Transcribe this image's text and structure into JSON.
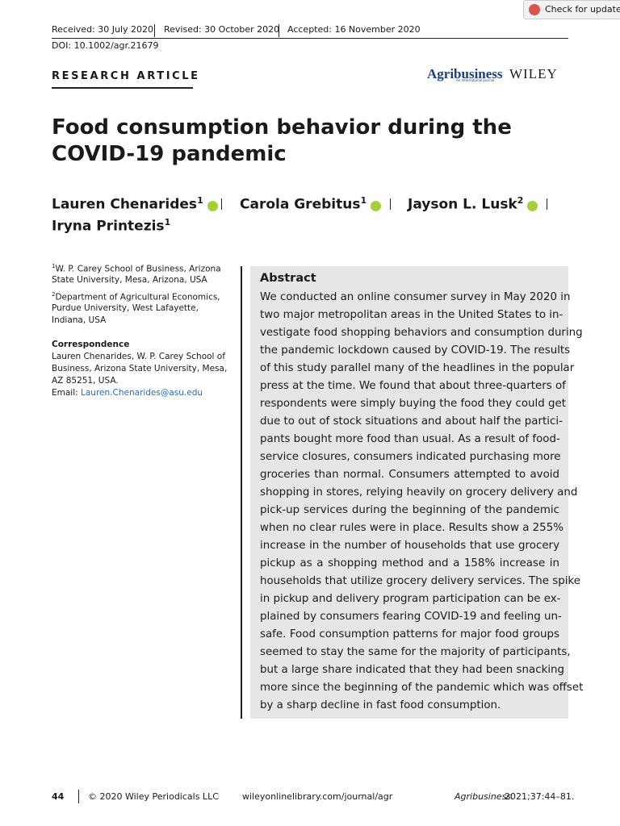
{
  "header": {
    "received": "Received: 30 July 2020",
    "revised": "Revised: 30 October 2020",
    "accepted": "Accepted: 16 November 2020",
    "doi": "DOI: 10.1002/agr.21679",
    "check_updates": "Check for updates"
  },
  "article_type": "RESEARCH ARTICLE",
  "journal_logo": {
    "name": "Agribusiness",
    "tagline": "An International Journal",
    "publisher": "WILEY"
  },
  "title_lines": [
    "Food consumption behavior during the",
    "COVID-19 pandemic"
  ],
  "authors": [
    {
      "name": "Lauren Chenarides",
      "sup": "1"
    },
    {
      "name": "Carola Grebitus",
      "sup": "1"
    },
    {
      "name": "Jayson L. Lusk",
      "sup": "2"
    },
    {
      "name": "Iryna Printezis",
      "sup": "1"
    }
  ],
  "affiliations": [
    {
      "sup": "1",
      "lines": [
        "W. P. Carey School of Business, Arizona",
        "State University, Mesa, Arizona, USA"
      ]
    },
    {
      "sup": "2",
      "lines": [
        "Department of Agricultural Economics,",
        "Purdue University, West Lafayette,",
        "Indiana, USA"
      ]
    }
  ],
  "correspondence": {
    "label": "Correspondence",
    "lines": [
      "Lauren Chenarides, W. P. Carey School of",
      "Business, Arizona State University, Mesa,",
      "AZ 85251, USA."
    ],
    "email_label": "Email:",
    "email": "Lauren.Chenarides@asu.edu"
  },
  "abstract": {
    "heading": "Abstract",
    "lines": [
      "We conducted an online consumer survey in May 2020 in",
      "two major metropolitan areas in the United States to in-",
      "vestigate food shopping behaviors and consumption during",
      "the pandemic lockdown caused by COVID-19. The results",
      "of this study parallel many of the headlines in the popular",
      "press at the time. We found that about three-quarters of",
      "respondents were simply buying the food they could get",
      "due to out of stock situations and about half the partici-",
      "pants bought more food than usual. As a result of food-",
      "service closures, consumers indicated purchasing more",
      "groceries than normal. Consumers attempted to avoid",
      "shopping in stores, relying heavily on grocery delivery and",
      "pick-up services during the beginning of the pandemic",
      "when no clear rules were in place. Results show a 255%",
      "increase in the number of households that use grocery",
      "pickup as a shopping method and a 158% increase in",
      "households that utilize grocery delivery services. The spike",
      "in pickup and delivery program participation can be ex-",
      "plained by consumers fearing COVID-19 and feeling un-",
      "safe. Food consumption patterns for major food groups",
      "seemed to stay the same for the majority of participants,",
      "but a large share indicated that they had been snacking",
      "more since the beginning of the pandemic which was offset",
      "by a sharp decline in fast food consumption."
    ]
  },
  "footer": {
    "page": "44",
    "copyright": "© 2020 Wiley Periodicals LLC",
    "url": "wileyonlinelibrary.com/journal/agr",
    "journal": "Agribusiness.",
    "citation": "2021;37:44–81."
  }
}
